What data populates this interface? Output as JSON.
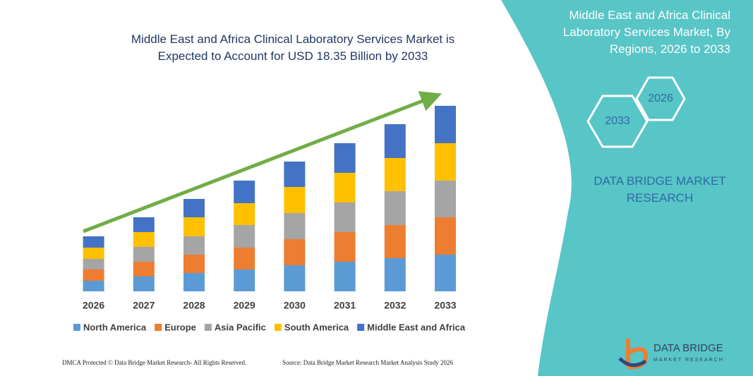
{
  "chart_data": {
    "type": "bar",
    "stacked": true,
    "title": "Middle East and Africa Clinical Laboratory Services Market is Expected to Account for USD 18.35 Billion by 2033",
    "categories": [
      "2026",
      "2027",
      "2028",
      "2029",
      "2030",
      "2031",
      "2032",
      "2033"
    ],
    "series": [
      {
        "name": "North America",
        "color": "#5b9bd5",
        "values": [
          15,
          21,
          26,
          31,
          37,
          42,
          47,
          52
        ]
      },
      {
        "name": "Europe",
        "color": "#ed7d31",
        "values": [
          16,
          21,
          26,
          31,
          37,
          42,
          47,
          53
        ]
      },
      {
        "name": "Asia Pacific",
        "color": "#a5a5a5",
        "values": [
          15,
          21,
          26,
          32,
          37,
          42,
          48,
          52
        ]
      },
      {
        "name": "South America",
        "color": "#ffc000",
        "values": [
          16,
          21,
          27,
          31,
          37,
          42,
          47,
          53
        ]
      },
      {
        "name": "Middle East and Africa",
        "color": "#4472c4",
        "values": [
          16,
          21,
          26,
          32,
          36,
          42,
          48,
          53
        ]
      }
    ],
    "ylim": [
      0,
      280
    ],
    "legend": "bottom"
  },
  "panel": {
    "title": "Middle East and Africa Clinical Laboratory Services Market, By Regions, 2026 to 2033",
    "hex_labels": [
      "2026",
      "2033"
    ],
    "brand": "DATA BRIDGE MARKET RESEARCH"
  },
  "footer": {
    "left": "DMCA Protected © Data Bridge Market Research- All Rights Reserved.",
    "right": "Source: Data Bridge Market Research Market Analysis Study 2026"
  },
  "logo": {
    "name": "DATA BRIDGE",
    "tagline": "MARKET RESEARCH"
  }
}
